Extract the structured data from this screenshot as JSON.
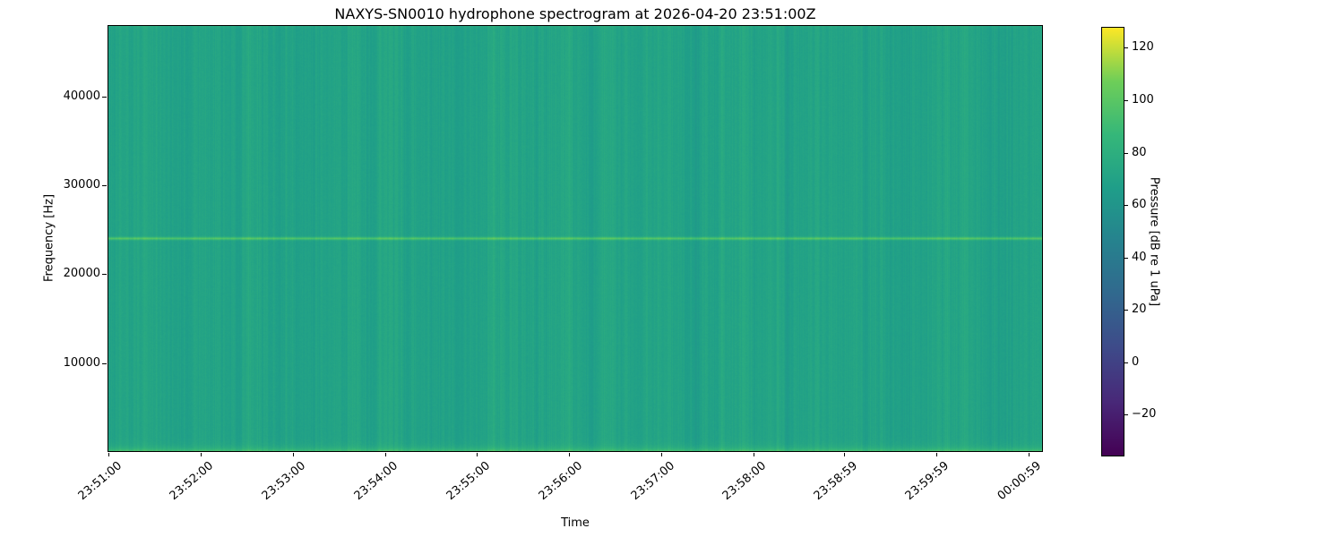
{
  "figure": {
    "kind": "matplotlib-style spectrogram figure",
    "background_color": "#ffffff",
    "text_color": "#000000"
  },
  "chart_data": {
    "type": "heatmap",
    "subtype": "spectrogram",
    "title": "NAXYS-SN0010 hydrophone spectrogram at 2026-04-20 23:51:00Z",
    "xlabel": "Time",
    "ylabel": "Frequency [Hz]",
    "x_range_seconds": [
      0,
      608
    ],
    "x_ticks": [
      {
        "label": "23:51:00",
        "seconds": 0
      },
      {
        "label": "23:52:00",
        "seconds": 60
      },
      {
        "label": "23:53:00",
        "seconds": 120
      },
      {
        "label": "23:54:00",
        "seconds": 180
      },
      {
        "label": "23:55:00",
        "seconds": 240
      },
      {
        "label": "23:56:00",
        "seconds": 300
      },
      {
        "label": "23:57:00",
        "seconds": 360
      },
      {
        "label": "23:58:00",
        "seconds": 420
      },
      {
        "label": "23:58:59",
        "seconds": 479
      },
      {
        "label": "23:59:59",
        "seconds": 539
      },
      {
        "label": "00:00:59",
        "seconds": 599
      }
    ],
    "y_range_hz": [
      0,
      48000
    ],
    "y_ticks": [
      {
        "label": "10000",
        "hz": 10000
      },
      {
        "label": "20000",
        "hz": 20000
      },
      {
        "label": "30000",
        "hz": 30000
      },
      {
        "label": "40000",
        "hz": 40000
      }
    ],
    "grid": false,
    "legend": "none",
    "colormap": "viridis",
    "viridis_stops": [
      "#440154",
      "#482878",
      "#3e4a89",
      "#31688e",
      "#26828e",
      "#1f9e89",
      "#35b779",
      "#6ece58",
      "#fde725"
    ],
    "colorbar": {
      "label": "Pressure [dB re 1 uPa]",
      "range_db": [
        -36,
        128
      ],
      "ticks": [
        {
          "label": "−20",
          "db": -20
        },
        {
          "label": "0",
          "db": 0
        },
        {
          "label": "20",
          "db": 20
        },
        {
          "label": "40",
          "db": 40
        },
        {
          "label": "60",
          "db": 60
        },
        {
          "label": "80",
          "db": 80
        },
        {
          "label": "100",
          "db": 100
        },
        {
          "label": "120",
          "db": 120
        }
      ]
    },
    "signal_content": {
      "description": "Nearly uniform broadband noise field (~71 dB) with fine vertical time striations, a persistent narrowband tonal line at 24 kHz (~100 dB), elevated energy at the lowest frequencies, and a faint bright edge at the 48 kHz Nyquist limit.",
      "background_level_db": 71,
      "column_striation_db": 8,
      "pixel_noise_db": 1.5,
      "tonal_line": {
        "frequency_hz": 24000,
        "peak_db": 100,
        "sigma_hz": 110
      },
      "low_frequency_band": {
        "peak_db": 95,
        "decay_hz": 350
      },
      "nyquist_edge": {
        "level_db": 78,
        "decay_hz": 150
      }
    }
  }
}
